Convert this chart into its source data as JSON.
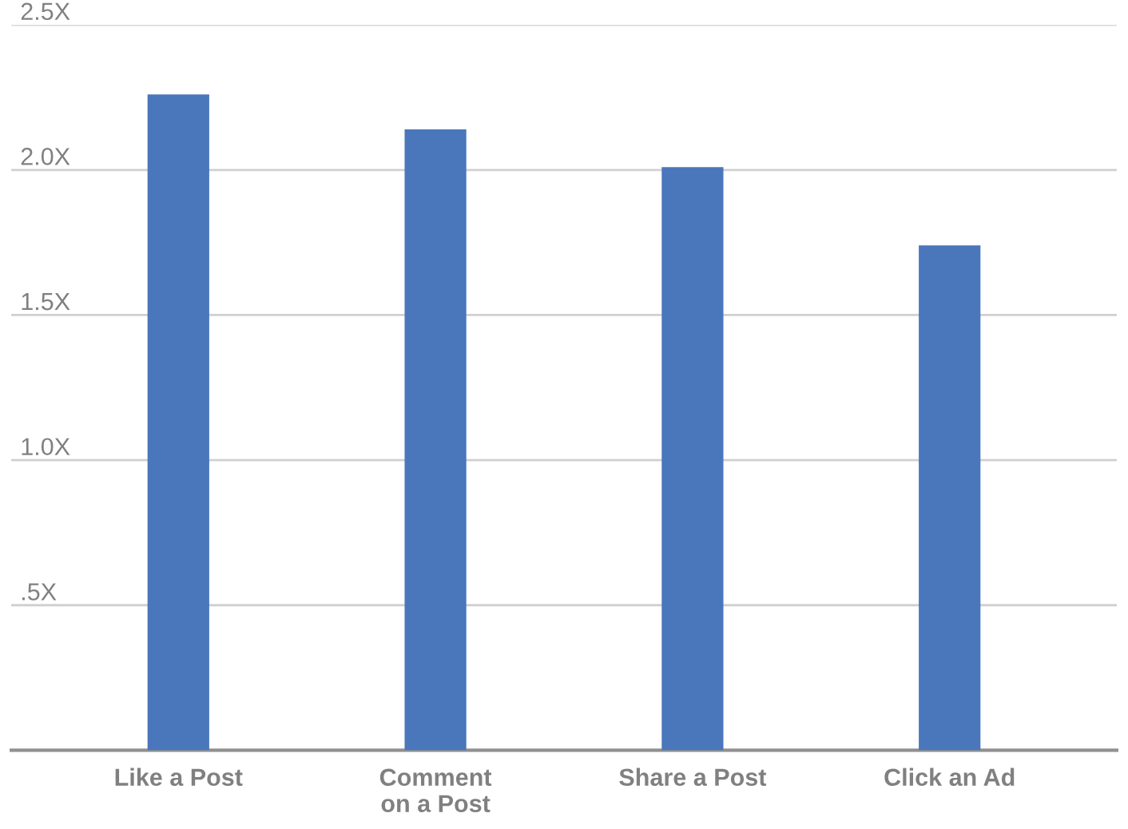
{
  "chart_data": {
    "type": "bar",
    "categories": [
      "Like a Post",
      "Comment\non a Post",
      "Share a Post",
      "Click an Ad"
    ],
    "values": [
      2.26,
      2.14,
      2.01,
      1.74
    ],
    "color": "#4a76bb",
    "ylim": [
      0,
      2.5
    ],
    "yticks": [
      {
        "value": 0,
        "label": null
      },
      {
        "value": 0.5,
        "label": ".5X"
      },
      {
        "value": 1.0,
        "label": "1.0X"
      },
      {
        "value": 1.5,
        "label": "1.5X"
      },
      {
        "value": 2.0,
        "label": "2.0X"
      },
      {
        "value": 2.5,
        "label": "2.5X"
      }
    ],
    "grid": "y"
  }
}
